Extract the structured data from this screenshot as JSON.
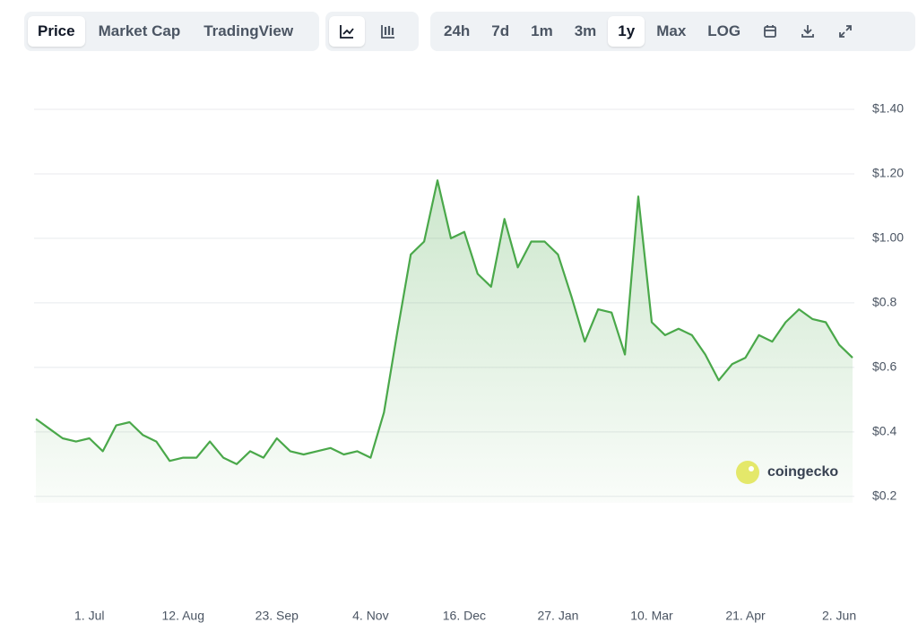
{
  "toolbar": {
    "tabs": [
      "Price",
      "Market Cap",
      "TradingView"
    ],
    "selected_tab": "Price",
    "ranges": [
      "24h",
      "7d",
      "1m",
      "3m",
      "1y",
      "Max",
      "LOG"
    ],
    "selected_range": "1y"
  },
  "chart_data": {
    "type": "line",
    "watermark": "coingecko",
    "categories": [
      null,
      null,
      null,
      null,
      "1. Jul",
      null,
      null,
      null,
      null,
      null,
      null,
      "12. Aug",
      null,
      null,
      null,
      null,
      null,
      null,
      "23. Sep",
      null,
      null,
      null,
      null,
      null,
      null,
      "4. Nov",
      null,
      null,
      null,
      null,
      null,
      null,
      "16. Dec",
      null,
      null,
      null,
      null,
      null,
      null,
      "27. Jan",
      null,
      null,
      null,
      null,
      null,
      null,
      "10. Mar",
      null,
      null,
      null,
      null,
      null,
      null,
      "21. Apr",
      null,
      null,
      null,
      null,
      null,
      null,
      "2. Jun",
      null
    ],
    "series": [
      {
        "name": "Price",
        "color": "#4aa84a",
        "values": [
          0.44,
          0.41,
          0.38,
          0.37,
          0.38,
          0.34,
          0.42,
          0.43,
          0.39,
          0.37,
          0.31,
          0.32,
          0.32,
          0.37,
          0.32,
          0.3,
          0.34,
          0.32,
          0.38,
          0.34,
          0.33,
          0.34,
          0.35,
          0.33,
          0.34,
          0.32,
          0.46,
          0.71,
          0.95,
          0.99,
          1.18,
          1.0,
          1.02,
          0.89,
          0.85,
          1.06,
          0.91,
          0.99,
          0.99,
          0.95,
          0.82,
          0.68,
          0.78,
          0.77,
          0.64,
          1.13,
          0.74,
          0.7,
          0.72,
          0.7,
          0.64,
          0.56,
          0.61,
          0.63,
          0.7,
          0.68,
          0.74,
          0.78,
          0.75,
          0.74,
          0.67,
          0.63
        ]
      }
    ],
    "ylim": [
      0.18,
      1.4
    ],
    "yticks": [
      {
        "value": 1.4,
        "label": "$1.40"
      },
      {
        "value": 1.2,
        "label": "$1.20"
      },
      {
        "value": 1.0,
        "label": "$1.00"
      },
      {
        "value": 0.8,
        "label": "$0.8"
      },
      {
        "value": 0.6,
        "label": "$0.6"
      },
      {
        "value": 0.4,
        "label": "$0.4"
      },
      {
        "value": 0.2,
        "label": "$0.2"
      }
    ],
    "grid": true
  }
}
